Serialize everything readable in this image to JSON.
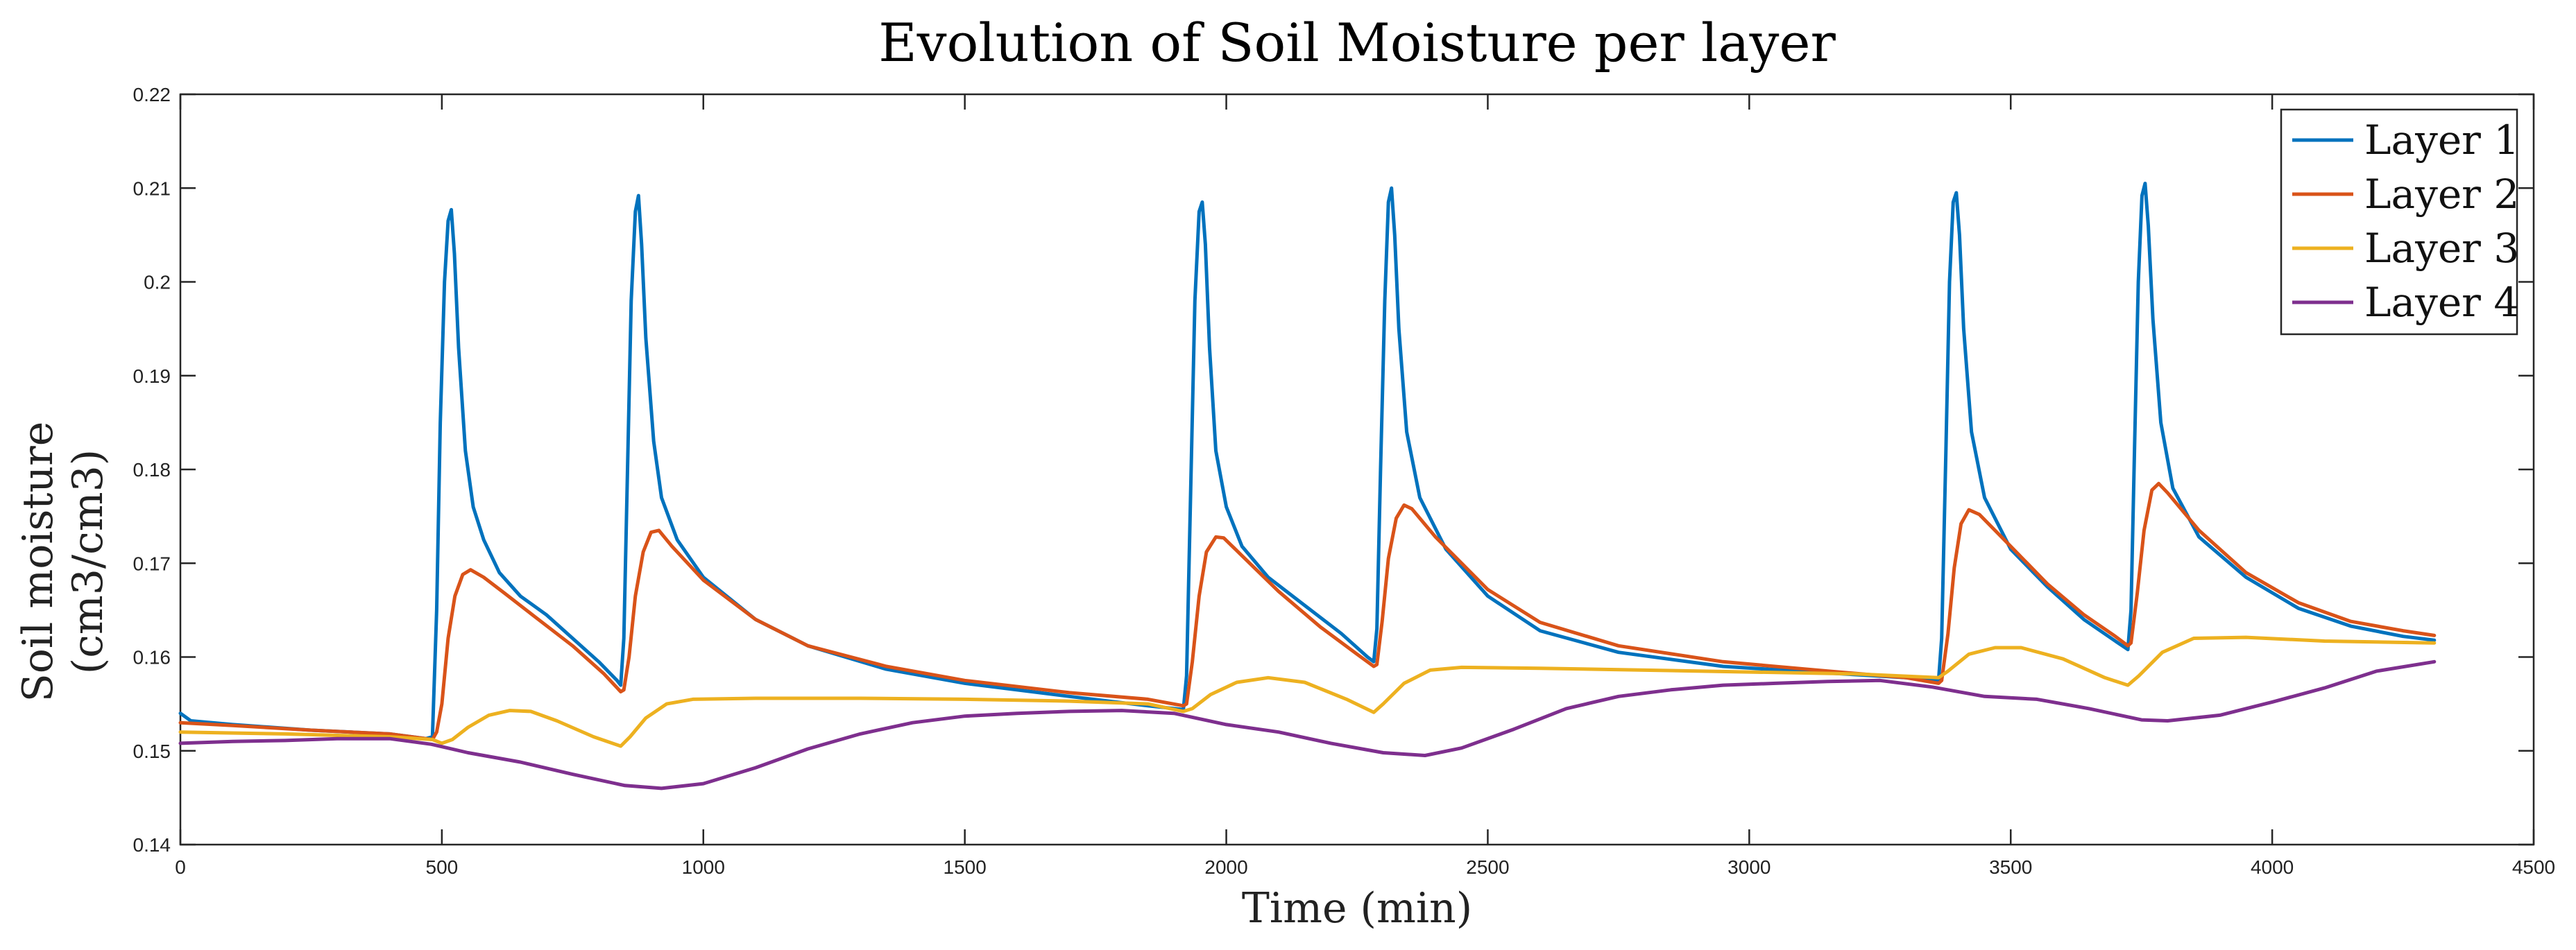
{
  "chart_data": {
    "type": "line",
    "title": "Evolution of Soil Moisture per layer",
    "xlabel": "Time (min)",
    "ylabel_lines": [
      "Soil moisture",
      "(cm3/cm3)"
    ],
    "xlim": [
      0,
      4500
    ],
    "ylim": [
      0.14,
      0.22
    ],
    "xticks": [
      0,
      500,
      1000,
      1500,
      2000,
      2500,
      3000,
      3500,
      4000,
      4500
    ],
    "xtick_labels": [
      "0",
      "500",
      "1000",
      "1500",
      "2000",
      "2500",
      "3000",
      "3500",
      "4000",
      "4500"
    ],
    "yticks": [
      0.14,
      0.15,
      0.16,
      0.17,
      0.18,
      0.19,
      0.2,
      0.21,
      0.22
    ],
    "ytick_labels": [
      "0.14",
      "0.15",
      "0.16",
      "0.17",
      "0.18",
      "0.19",
      "0.2",
      "0.21",
      "0.22"
    ],
    "grid": false,
    "legend_position": "top-right",
    "series": [
      {
        "name": "Layer 1",
        "color": "#0072BD",
        "points": [
          [
            0,
            0.154
          ],
          [
            20,
            0.1532
          ],
          [
            100,
            0.1528
          ],
          [
            250,
            0.1522
          ],
          [
            400,
            0.1518
          ],
          [
            470,
            0.1513
          ],
          [
            482,
            0.1515
          ],
          [
            490,
            0.165
          ],
          [
            497,
            0.185
          ],
          [
            505,
            0.2
          ],
          [
            512,
            0.2065
          ],
          [
            518,
            0.2077
          ],
          [
            524,
            0.203
          ],
          [
            532,
            0.193
          ],
          [
            545,
            0.182
          ],
          [
            560,
            0.176
          ],
          [
            580,
            0.1725
          ],
          [
            610,
            0.169
          ],
          [
            650,
            0.1665
          ],
          [
            700,
            0.1645
          ],
          [
            750,
            0.162
          ],
          [
            800,
            0.1595
          ],
          [
            835,
            0.1575
          ],
          [
            842,
            0.157
          ],
          [
            848,
            0.162
          ],
          [
            855,
            0.18
          ],
          [
            862,
            0.198
          ],
          [
            870,
            0.2075
          ],
          [
            876,
            0.2092
          ],
          [
            882,
            0.204
          ],
          [
            890,
            0.194
          ],
          [
            905,
            0.183
          ],
          [
            920,
            0.177
          ],
          [
            950,
            0.1725
          ],
          [
            1000,
            0.1685
          ],
          [
            1100,
            0.164
          ],
          [
            1200,
            0.1612
          ],
          [
            1350,
            0.1587
          ],
          [
            1500,
            0.1572
          ],
          [
            1700,
            0.1558
          ],
          [
            1850,
            0.1548
          ],
          [
            1918,
            0.1544
          ],
          [
            1924,
            0.158
          ],
          [
            1932,
            0.178
          ],
          [
            1940,
            0.198
          ],
          [
            1948,
            0.2075
          ],
          [
            1954,
            0.2085
          ],
          [
            1960,
            0.204
          ],
          [
            1968,
            0.193
          ],
          [
            1980,
            0.182
          ],
          [
            2000,
            0.176
          ],
          [
            2030,
            0.1718
          ],
          [
            2080,
            0.1685
          ],
          [
            2150,
            0.1655
          ],
          [
            2220,
            0.1625
          ],
          [
            2270,
            0.16
          ],
          [
            2282,
            0.1595
          ],
          [
            2288,
            0.163
          ],
          [
            2295,
            0.18
          ],
          [
            2303,
            0.198
          ],
          [
            2310,
            0.2085
          ],
          [
            2316,
            0.21
          ],
          [
            2322,
            0.205
          ],
          [
            2330,
            0.195
          ],
          [
            2345,
            0.184
          ],
          [
            2370,
            0.177
          ],
          [
            2420,
            0.1715
          ],
          [
            2500,
            0.1665
          ],
          [
            2600,
            0.1628
          ],
          [
            2750,
            0.1605
          ],
          [
            2950,
            0.159
          ],
          [
            3150,
            0.1583
          ],
          [
            3300,
            0.1578
          ],
          [
            3362,
            0.1575
          ],
          [
            3368,
            0.162
          ],
          [
            3376,
            0.182
          ],
          [
            3383,
            0.2
          ],
          [
            3390,
            0.2085
          ],
          [
            3396,
            0.2095
          ],
          [
            3402,
            0.205
          ],
          [
            3410,
            0.195
          ],
          [
            3425,
            0.184
          ],
          [
            3450,
            0.177
          ],
          [
            3500,
            0.1715
          ],
          [
            3570,
            0.1675
          ],
          [
            3640,
            0.164
          ],
          [
            3700,
            0.1617
          ],
          [
            3724,
            0.1608
          ],
          [
            3730,
            0.165
          ],
          [
            3737,
            0.183
          ],
          [
            3744,
            0.2
          ],
          [
            3751,
            0.2092
          ],
          [
            3757,
            0.2105
          ],
          [
            3763,
            0.206
          ],
          [
            3772,
            0.196
          ],
          [
            3787,
            0.185
          ],
          [
            3810,
            0.178
          ],
          [
            3860,
            0.1728
          ],
          [
            3950,
            0.1685
          ],
          [
            4050,
            0.1652
          ],
          [
            4150,
            0.1633
          ],
          [
            4250,
            0.1622
          ],
          [
            4310,
            0.1618
          ]
        ]
      },
      {
        "name": "Layer 2",
        "color": "#D95319",
        "points": [
          [
            0,
            0.153
          ],
          [
            100,
            0.1527
          ],
          [
            250,
            0.1522
          ],
          [
            400,
            0.1518
          ],
          [
            482,
            0.1512
          ],
          [
            490,
            0.152
          ],
          [
            500,
            0.155
          ],
          [
            512,
            0.162
          ],
          [
            525,
            0.1665
          ],
          [
            540,
            0.1688
          ],
          [
            555,
            0.1693
          ],
          [
            580,
            0.1685
          ],
          [
            620,
            0.1668
          ],
          [
            680,
            0.1642
          ],
          [
            750,
            0.1612
          ],
          [
            810,
            0.1582
          ],
          [
            842,
            0.1563
          ],
          [
            848,
            0.1565
          ],
          [
            858,
            0.16
          ],
          [
            870,
            0.1665
          ],
          [
            885,
            0.1712
          ],
          [
            900,
            0.1733
          ],
          [
            915,
            0.1735
          ],
          [
            940,
            0.1718
          ],
          [
            1000,
            0.1682
          ],
          [
            1100,
            0.164
          ],
          [
            1200,
            0.1612
          ],
          [
            1350,
            0.159
          ],
          [
            1500,
            0.1575
          ],
          [
            1700,
            0.1562
          ],
          [
            1850,
            0.1555
          ],
          [
            1918,
            0.1548
          ],
          [
            1924,
            0.155
          ],
          [
            1935,
            0.1595
          ],
          [
            1948,
            0.1665
          ],
          [
            1962,
            0.1712
          ],
          [
            1980,
            0.1728
          ],
          [
            1995,
            0.1727
          ],
          [
            2030,
            0.1708
          ],
          [
            2100,
            0.167
          ],
          [
            2180,
            0.1632
          ],
          [
            2250,
            0.1603
          ],
          [
            2282,
            0.159
          ],
          [
            2288,
            0.1592
          ],
          [
            2298,
            0.1638
          ],
          [
            2310,
            0.1705
          ],
          [
            2325,
            0.1748
          ],
          [
            2340,
            0.1762
          ],
          [
            2355,
            0.1758
          ],
          [
            2400,
            0.1728
          ],
          [
            2500,
            0.1672
          ],
          [
            2600,
            0.1637
          ],
          [
            2750,
            0.1612
          ],
          [
            2950,
            0.1595
          ],
          [
            3150,
            0.1585
          ],
          [
            3300,
            0.1578
          ],
          [
            3362,
            0.1572
          ],
          [
            3368,
            0.1575
          ],
          [
            3380,
            0.1625
          ],
          [
            3392,
            0.1695
          ],
          [
            3405,
            0.1742
          ],
          [
            3420,
            0.1757
          ],
          [
            3440,
            0.1752
          ],
          [
            3500,
            0.1718
          ],
          [
            3570,
            0.1678
          ],
          [
            3640,
            0.1645
          ],
          [
            3700,
            0.1622
          ],
          [
            3724,
            0.1612
          ],
          [
            3730,
            0.1615
          ],
          [
            3742,
            0.1668
          ],
          [
            3755,
            0.1735
          ],
          [
            3770,
            0.1778
          ],
          [
            3783,
            0.1785
          ],
          [
            3800,
            0.1775
          ],
          [
            3860,
            0.1735
          ],
          [
            3950,
            0.169
          ],
          [
            4050,
            0.1658
          ],
          [
            4150,
            0.1638
          ],
          [
            4250,
            0.1628
          ],
          [
            4310,
            0.1623
          ]
        ]
      },
      {
        "name": "Layer 3",
        "color": "#EDB120",
        "points": [
          [
            0,
            0.152
          ],
          [
            200,
            0.1518
          ],
          [
            400,
            0.1515
          ],
          [
            482,
            0.1512
          ],
          [
            500,
            0.1508
          ],
          [
            520,
            0.1512
          ],
          [
            550,
            0.1525
          ],
          [
            590,
            0.1538
          ],
          [
            630,
            0.1543
          ],
          [
            670,
            0.1542
          ],
          [
            720,
            0.1532
          ],
          [
            790,
            0.1515
          ],
          [
            842,
            0.1505
          ],
          [
            860,
            0.1515
          ],
          [
            890,
            0.1535
          ],
          [
            930,
            0.155
          ],
          [
            980,
            0.1555
          ],
          [
            1100,
            0.1556
          ],
          [
            1300,
            0.1556
          ],
          [
            1500,
            0.1555
          ],
          [
            1700,
            0.1553
          ],
          [
            1850,
            0.155
          ],
          [
            1918,
            0.1542
          ],
          [
            1935,
            0.1545
          ],
          [
            1970,
            0.156
          ],
          [
            2020,
            0.1573
          ],
          [
            2080,
            0.1578
          ],
          [
            2150,
            0.1573
          ],
          [
            2230,
            0.1555
          ],
          [
            2282,
            0.1541
          ],
          [
            2300,
            0.155
          ],
          [
            2340,
            0.1572
          ],
          [
            2390,
            0.1586
          ],
          [
            2450,
            0.1589
          ],
          [
            2600,
            0.1588
          ],
          [
            2800,
            0.1586
          ],
          [
            3000,
            0.1584
          ],
          [
            3200,
            0.1582
          ],
          [
            3362,
            0.1578
          ],
          [
            3380,
            0.1585
          ],
          [
            3420,
            0.1603
          ],
          [
            3470,
            0.161
          ],
          [
            3520,
            0.161
          ],
          [
            3600,
            0.1598
          ],
          [
            3680,
            0.1578
          ],
          [
            3724,
            0.157
          ],
          [
            3745,
            0.158
          ],
          [
            3790,
            0.1605
          ],
          [
            3850,
            0.162
          ],
          [
            3950,
            0.1621
          ],
          [
            4100,
            0.1617
          ],
          [
            4310,
            0.1615
          ]
        ]
      },
      {
        "name": "Layer 4",
        "color": "#7E2F8E",
        "points": [
          [
            0,
            0.1508
          ],
          [
            100,
            0.151
          ],
          [
            200,
            0.1511
          ],
          [
            300,
            0.1513
          ],
          [
            400,
            0.1513
          ],
          [
            480,
            0.1507
          ],
          [
            550,
            0.1498
          ],
          [
            650,
            0.1488
          ],
          [
            750,
            0.1475
          ],
          [
            850,
            0.1463
          ],
          [
            920,
            0.146
          ],
          [
            1000,
            0.1465
          ],
          [
            1100,
            0.1482
          ],
          [
            1200,
            0.1502
          ],
          [
            1300,
            0.1518
          ],
          [
            1400,
            0.153
          ],
          [
            1500,
            0.1537
          ],
          [
            1600,
            0.154
          ],
          [
            1700,
            0.1542
          ],
          [
            1800,
            0.1543
          ],
          [
            1900,
            0.154
          ],
          [
            2000,
            0.1528
          ],
          [
            2100,
            0.152
          ],
          [
            2200,
            0.1508
          ],
          [
            2300,
            0.1498
          ],
          [
            2380,
            0.1495
          ],
          [
            2450,
            0.1503
          ],
          [
            2550,
            0.1523
          ],
          [
            2650,
            0.1545
          ],
          [
            2750,
            0.1558
          ],
          [
            2850,
            0.1565
          ],
          [
            2950,
            0.157
          ],
          [
            3050,
            0.1572
          ],
          [
            3150,
            0.1574
          ],
          [
            3250,
            0.1575
          ],
          [
            3350,
            0.1568
          ],
          [
            3450,
            0.1558
          ],
          [
            3550,
            0.1555
          ],
          [
            3650,
            0.1545
          ],
          [
            3750,
            0.1533
          ],
          [
            3800,
            0.1532
          ],
          [
            3900,
            0.1538
          ],
          [
            4000,
            0.1552
          ],
          [
            4100,
            0.1567
          ],
          [
            4200,
            0.1585
          ],
          [
            4310,
            0.1595
          ]
        ]
      }
    ]
  }
}
